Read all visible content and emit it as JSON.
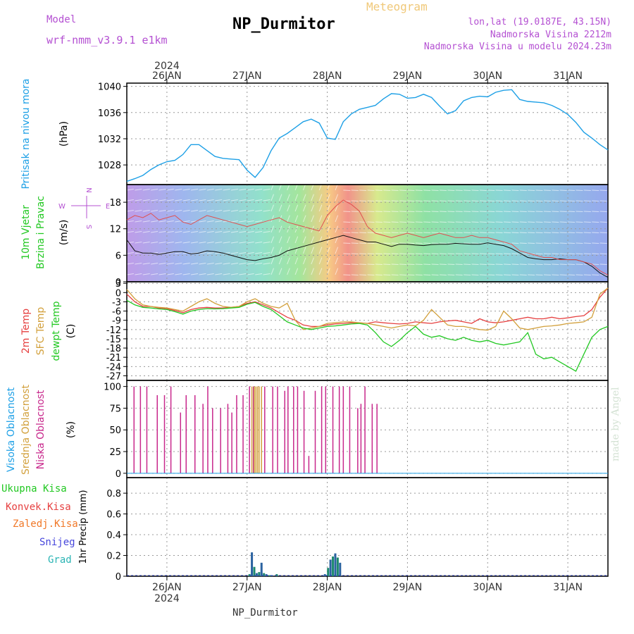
{
  "header": {
    "model_label": "Model",
    "model_name": "wrf-nmm_v3.9.1  e1km",
    "station_title": "NP_Durmitor",
    "product": "Meteogram",
    "lonlat": "lon,lat (19.0187E, 43.15N)",
    "elevation": "Nadmorska Visina 2212m",
    "model_elevation": "Nadmorska Visina u modelu 2024.23m"
  },
  "footer": {
    "station": "NP_Durmitor",
    "credit": "made by Angel"
  },
  "colors": {
    "pressure": "#1ea0e6",
    "t2m": "#e64040",
    "sfc": "#d2a03c",
    "dewpt": "#22c822",
    "high_cloud": "#1ea0e6",
    "mid_cloud": "#d2a03c",
    "low_cloud": "#c8288c",
    "precip_total": "#22c822",
    "precip_conv": "#e64040",
    "precip_frz": "#f07828",
    "precip_snow": "#4646dc",
    "precip_grad": "#2ab4b4",
    "magenta_text": "#b450d2"
  },
  "chart_data": [
    {
      "type": "line",
      "panel": "pressure",
      "ylabel_1": "Pritisak na nivou mora",
      "ylabel_2": "(hPa)",
      "yticks": [
        1028,
        1032,
        1036,
        1040
      ],
      "ylim": [
        1025,
        1040.5
      ],
      "xlim": [
        25.5,
        31.5
      ],
      "x": [
        25.5,
        25.6,
        25.7,
        25.8,
        25.9,
        26.0,
        26.1,
        26.2,
        26.3,
        26.4,
        26.5,
        26.6,
        26.7,
        26.8,
        26.9,
        27.0,
        27.1,
        27.2,
        27.3,
        27.4,
        27.5,
        27.6,
        27.7,
        27.8,
        27.9,
        28.0,
        28.1,
        28.2,
        28.3,
        28.4,
        28.5,
        28.6,
        28.7,
        28.8,
        28.9,
        29.0,
        29.1,
        29.2,
        29.3,
        29.4,
        29.5,
        29.6,
        29.7,
        29.8,
        29.9,
        30.0,
        30.1,
        30.2,
        30.3,
        30.4,
        30.5,
        30.6,
        30.7,
        30.8,
        30.9,
        31.0,
        31.1,
        31.2,
        31.3,
        31.4,
        31.5
      ],
      "y": [
        1025.5,
        1025.9,
        1026.4,
        1027.3,
        1028.0,
        1028.5,
        1028.7,
        1029.6,
        1031.1,
        1031.1,
        1030.2,
        1029.3,
        1029.0,
        1028.9,
        1028.8,
        1027.2,
        1026.1,
        1027.6,
        1030.2,
        1032.1,
        1032.8,
        1033.7,
        1034.6,
        1035.0,
        1034.4,
        1032.1,
        1031.9,
        1034.6,
        1035.8,
        1036.5,
        1036.8,
        1037.1,
        1038.1,
        1038.9,
        1038.8,
        1038.2,
        1038.3,
        1038.8,
        1038.3,
        1037.0,
        1035.8,
        1036.3,
        1037.8,
        1038.3,
        1038.5,
        1038.4,
        1039.1,
        1039.4,
        1039.5,
        1038.0,
        1037.7,
        1037.6,
        1037.5,
        1037.1,
        1036.5,
        1035.7,
        1034.5,
        1033.0,
        1032.1,
        1031.1,
        1030.3
      ],
      "series_name": "Pritisak"
    },
    {
      "type": "line",
      "panel": "wind",
      "ylabel_1": "10m Vjetar",
      "ylabel_2": "Brzina i Pravac",
      "ylabel_3": "(m/s)",
      "compass": {
        "north": "N",
        "west": "W",
        "east": "E",
        "south": "S"
      },
      "yticks": [
        0,
        6,
        12,
        18
      ],
      "ylim": [
        0,
        22
      ],
      "xlim": [
        25.5,
        31.5
      ],
      "x": [
        25.5,
        25.6,
        25.7,
        25.8,
        25.9,
        26.0,
        26.1,
        26.2,
        26.3,
        26.4,
        26.5,
        26.6,
        26.7,
        26.8,
        26.9,
        27.0,
        27.1,
        27.2,
        27.3,
        27.4,
        27.5,
        27.6,
        27.7,
        27.8,
        27.9,
        28.0,
        28.1,
        28.2,
        28.3,
        28.4,
        28.5,
        28.6,
        28.7,
        28.8,
        28.9,
        29.0,
        29.1,
        29.2,
        29.3,
        29.4,
        29.5,
        29.6,
        29.7,
        29.8,
        29.9,
        30.0,
        30.1,
        30.2,
        30.3,
        30.4,
        30.5,
        30.6,
        30.7,
        30.8,
        30.9,
        31.0,
        31.1,
        31.2,
        31.3,
        31.4,
        31.5
      ],
      "speed": [
        9.5,
        7.0,
        6.5,
        6.5,
        6.2,
        6.5,
        6.8,
        6.8,
        6.3,
        6.5,
        7.0,
        6.8,
        6.5,
        6.0,
        5.5,
        5.0,
        4.8,
        5.2,
        5.5,
        6.0,
        7.0,
        7.5,
        8.0,
        8.5,
        9.0,
        9.5,
        10.0,
        10.5,
        10.0,
        9.5,
        9.0,
        9.0,
        8.5,
        8.0,
        8.5,
        8.5,
        8.3,
        8.2,
        8.4,
        8.5,
        8.5,
        8.7,
        8.6,
        8.5,
        8.5,
        8.8,
        8.5,
        8.2,
        7.5,
        6.5,
        5.5,
        5.2,
        5.0,
        5.0,
        5.2,
        5.0,
        5.0,
        4.5,
        3.5,
        2.0,
        1.0
      ],
      "gust": [
        14.0,
        15.0,
        14.5,
        15.5,
        14.0,
        14.5,
        15.0,
        13.5,
        13.0,
        14.0,
        15.0,
        14.5,
        14.0,
        13.5,
        13.0,
        12.5,
        13.0,
        13.5,
        14.0,
        14.5,
        13.5,
        13.0,
        12.5,
        12.0,
        11.5,
        15.0,
        17.0,
        18.5,
        17.5,
        16.0,
        12.5,
        11.0,
        10.5,
        10.0,
        10.5,
        11.0,
        10.5,
        10.0,
        10.5,
        11.0,
        10.5,
        10.0,
        10.0,
        10.5,
        10.0,
        10.0,
        9.5,
        9.0,
        8.5,
        7.0,
        6.5,
        6.0,
        5.5,
        5.5,
        5.0,
        5.0,
        5.0,
        4.5,
        4.0,
        2.5,
        1.5
      ]
    },
    {
      "type": "line",
      "panel": "temperature",
      "ylabel_1": "2m Temp",
      "ylabel_2": "SFC Temp",
      "ylabel_3": "dewpt Temp",
      "ylabel_4": "(C)",
      "yticks": [
        3,
        0,
        -3,
        -6,
        -9,
        -12,
        -15,
        -18,
        -21,
        -24,
        -27
      ],
      "ylim": [
        -28.5,
        3.5
      ],
      "xlim": [
        25.5,
        31.5
      ],
      "x": [
        25.5,
        25.6,
        25.7,
        25.8,
        25.9,
        26.0,
        26.1,
        26.2,
        26.3,
        26.4,
        26.5,
        26.6,
        26.7,
        26.8,
        26.9,
        27.0,
        27.1,
        27.2,
        27.3,
        27.4,
        27.5,
        27.6,
        27.7,
        27.8,
        27.9,
        28.0,
        28.1,
        28.2,
        28.3,
        28.4,
        28.5,
        28.6,
        28.7,
        28.8,
        28.9,
        29.0,
        29.1,
        29.2,
        29.3,
        29.4,
        29.5,
        29.6,
        29.7,
        29.8,
        29.9,
        30.0,
        30.1,
        30.2,
        30.3,
        30.4,
        30.5,
        30.6,
        30.7,
        30.8,
        30.9,
        31.0,
        31.1,
        31.2,
        31.3,
        31.4,
        31.5
      ],
      "series": [
        {
          "name": "2m Temp",
          "values": [
            -0.5,
            -3.0,
            -4.5,
            -4.5,
            -5.0,
            -5.2,
            -5.8,
            -6.5,
            -5.5,
            -5.0,
            -4.8,
            -5.0,
            -5.0,
            -4.8,
            -4.5,
            -3.5,
            -3.0,
            -4.0,
            -5.0,
            -6.5,
            -8.0,
            -9.0,
            -10.5,
            -11.0,
            -11.0,
            -10.5,
            -10.2,
            -10.0,
            -9.8,
            -9.8,
            -10.0,
            -9.5,
            -9.8,
            -10.0,
            -10.2,
            -10.0,
            -9.5,
            -9.8,
            -10.0,
            -9.5,
            -9.2,
            -9.0,
            -9.5,
            -10.0,
            -8.5,
            -9.5,
            -9.8,
            -9.5,
            -9.0,
            -8.5,
            -8.0,
            -8.5,
            -8.5,
            -8.0,
            -8.5,
            -8.2,
            -7.8,
            -7.5,
            -5.5,
            -1.5,
            1.5
          ]
        },
        {
          "name": "SFC Temp",
          "values": [
            1.0,
            -2.0,
            -4.0,
            -4.5,
            -4.8,
            -5.0,
            -5.5,
            -6.0,
            -4.5,
            -3.0,
            -2.0,
            -3.5,
            -4.5,
            -4.8,
            -4.5,
            -3.0,
            -2.0,
            -3.5,
            -4.5,
            -5.0,
            -3.5,
            -9.0,
            -12.0,
            -11.5,
            -11.0,
            -10.0,
            -9.8,
            -9.5,
            -9.5,
            -9.8,
            -10.0,
            -10.5,
            -11.0,
            -11.5,
            -11.0,
            -10.5,
            -10.8,
            -9.0,
            -5.5,
            -8.0,
            -10.5,
            -11.0,
            -11.0,
            -11.5,
            -12.0,
            -12.2,
            -11.0,
            -6.0,
            -8.5,
            -11.5,
            -12.0,
            -11.5,
            -11.0,
            -10.8,
            -10.5,
            -10.0,
            -9.8,
            -9.5,
            -8.0,
            -0.5,
            1.5
          ]
        },
        {
          "name": "dewpt Temp",
          "values": [
            -2.5,
            -4.0,
            -4.8,
            -5.0,
            -5.3,
            -5.5,
            -6.2,
            -7.0,
            -6.0,
            -5.5,
            -5.2,
            -5.3,
            -5.2,
            -5.0,
            -4.8,
            -3.8,
            -3.2,
            -4.5,
            -5.5,
            -7.5,
            -9.5,
            -10.5,
            -11.5,
            -12.0,
            -11.5,
            -11.0,
            -10.8,
            -10.5,
            -10.2,
            -10.0,
            -10.5,
            -13.0,
            -16.0,
            -17.5,
            -15.5,
            -13.0,
            -11.0,
            -13.5,
            -14.5,
            -14.0,
            -15.0,
            -15.5,
            -14.5,
            -15.5,
            -16.0,
            -15.5,
            -16.5,
            -17.0,
            -16.5,
            -16.0,
            -13.0,
            -20.0,
            -21.5,
            -21.0,
            -22.5,
            -24.0,
            -25.5,
            -20.0,
            -14.5,
            -12.0,
            -11.0
          ]
        }
      ]
    },
    {
      "type": "bar",
      "panel": "clouds",
      "ylabel_1": "Visoka Oblacnost",
      "ylabel_2": "Srednja Oblacnost",
      "ylabel_3": "Niska Oblacnost",
      "ylabel_4": "(%)",
      "yticks": [
        0,
        25,
        50,
        75,
        100
      ],
      "ylim": [
        -5,
        107
      ],
      "xlim": [
        25.5,
        31.5
      ],
      "low_x": [
        25.59,
        25.67,
        25.75,
        25.88,
        25.97,
        26.05,
        26.17,
        26.24,
        26.35,
        26.45,
        26.51,
        26.57,
        26.67,
        26.76,
        26.81,
        26.87,
        26.95,
        27.03,
        27.08,
        27.22,
        27.32,
        27.38,
        27.47,
        27.51,
        27.58,
        27.63,
        27.71,
        27.77,
        27.85,
        27.93,
        27.98,
        28.07,
        28.15,
        28.2,
        28.28,
        28.38,
        28.42,
        28.47,
        28.56,
        28.62
      ],
      "low_y": [
        100,
        100,
        100,
        90,
        90,
        100,
        70,
        90,
        90,
        80,
        100,
        75,
        75,
        80,
        70,
        90,
        90,
        100,
        100,
        100,
        100,
        100,
        95,
        100,
        100,
        100,
        95,
        20,
        95,
        100,
        100,
        100,
        100,
        100,
        100,
        75,
        80,
        100,
        80,
        80
      ],
      "mid_x": [
        27.06,
        27.09,
        27.11,
        27.13,
        27.15,
        27.18
      ],
      "mid_y": [
        100,
        100,
        100,
        100,
        100,
        100
      ]
    },
    {
      "type": "bar",
      "panel": "precipitation",
      "legend": [
        "Ukupna  Kisa",
        "Konvek.Kisa",
        "Zaledj.Kisa",
        "Snijeg",
        "Grad"
      ],
      "ylabel": "1hr Precip (mm)",
      "yticks": [
        0,
        0.2,
        0.4,
        0.6,
        0.8
      ],
      "ylim": [
        0,
        0.95
      ],
      "xlim": [
        25.5,
        31.5
      ],
      "bar_x": [
        27.03,
        27.06,
        27.09,
        27.12,
        27.15,
        27.18,
        27.21,
        27.24,
        27.28,
        27.31,
        27.37,
        27.97,
        28.01,
        28.04,
        28.07,
        28.1,
        28.13,
        28.16
      ],
      "bar_y": [
        0.02,
        0.23,
        0.09,
        0.03,
        0.04,
        0.13,
        0.03,
        0.02,
        0.01,
        0.01,
        0.02,
        0.02,
        0.08,
        0.16,
        0.19,
        0.22,
        0.18,
        0.13
      ]
    }
  ],
  "xaxis": {
    "year": "2024",
    "ticks": [
      {
        "x": 26,
        "label": "26JAN"
      },
      {
        "x": 27,
        "label": "27JAN"
      },
      {
        "x": 28,
        "label": "28JAN"
      },
      {
        "x": 29,
        "label": "29JAN"
      },
      {
        "x": 30,
        "label": "30JAN"
      },
      {
        "x": 31,
        "label": "31JAN"
      }
    ]
  }
}
